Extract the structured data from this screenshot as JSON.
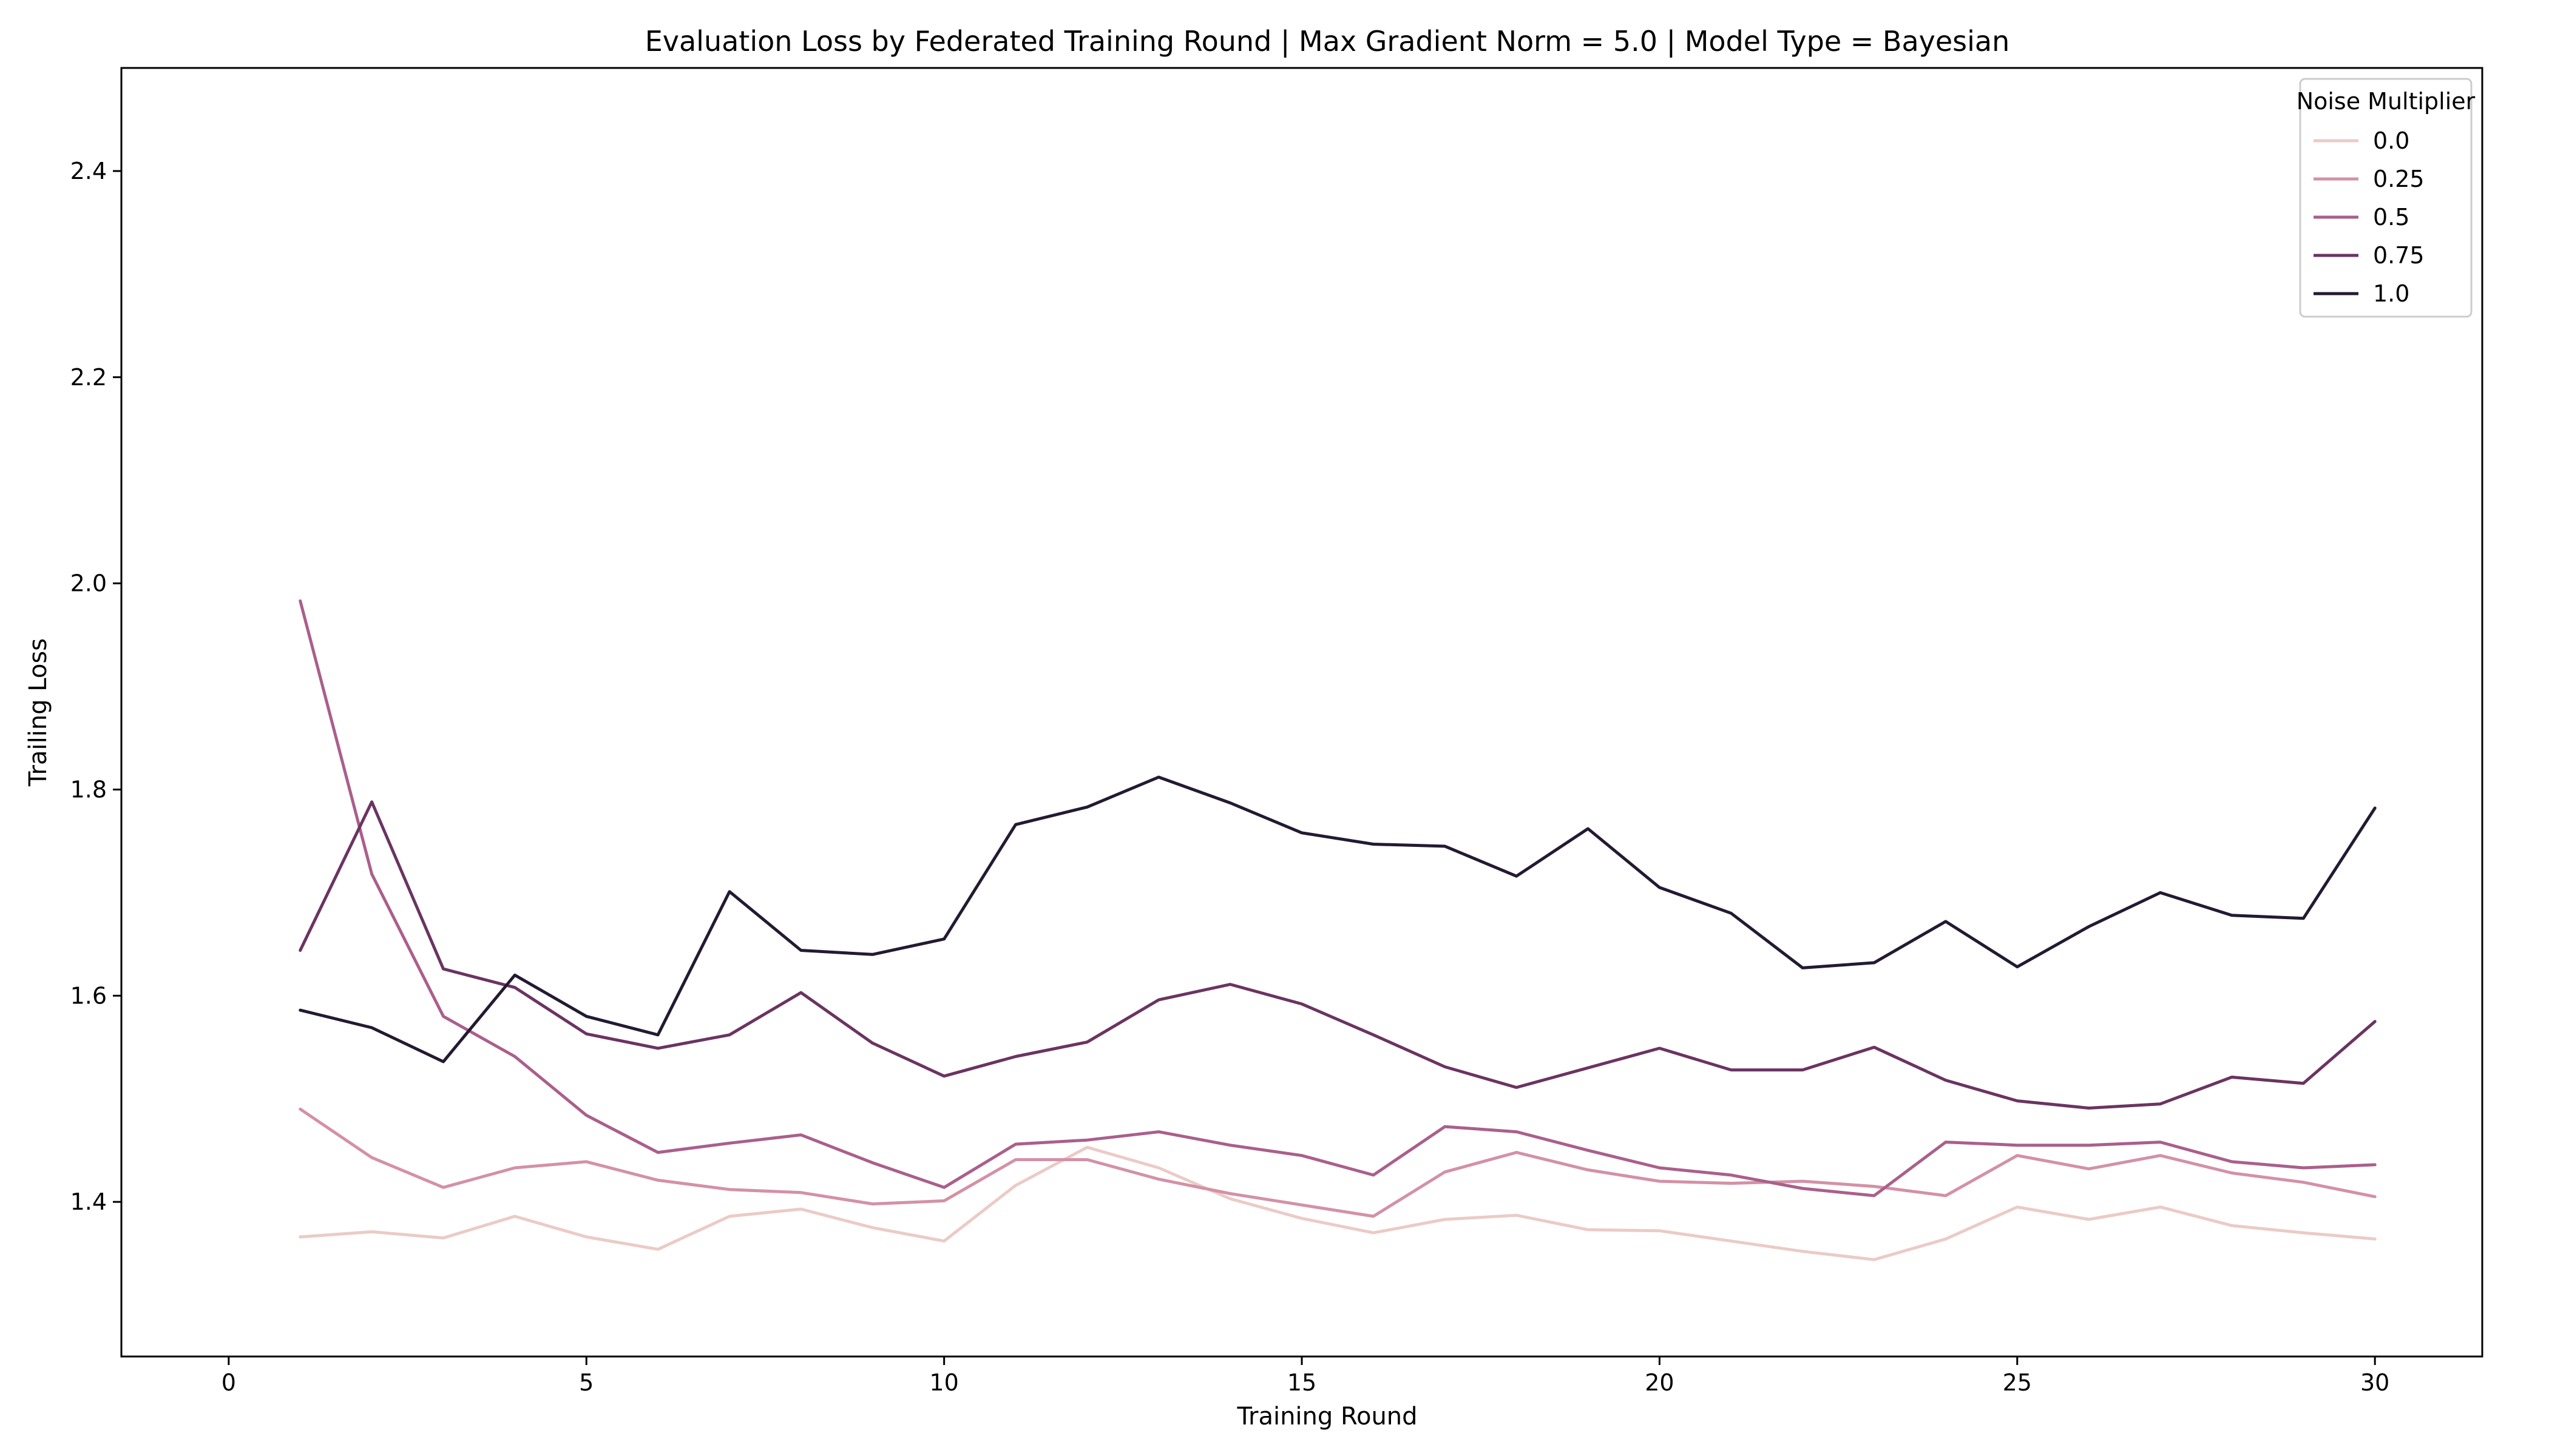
{
  "chart_data": {
    "type": "line",
    "title": "Evaluation Loss by Federated Training Round | Max Gradient Norm = 5.0 | Model Type = Bayesian",
    "xlabel": "Training Round",
    "ylabel": "Trailing Loss",
    "xlim": [
      -1.5,
      31.5
    ],
    "ylim": [
      1.25,
      2.5
    ],
    "xticks": [
      0,
      5,
      10,
      15,
      20,
      25,
      30
    ],
    "yticks": [
      1.4,
      1.6,
      1.8,
      2.0,
      2.2,
      2.4
    ],
    "grid": false,
    "legend": {
      "title": "Noise Multiplier",
      "position": "top-right"
    },
    "x": [
      1,
      2,
      3,
      4,
      5,
      6,
      7,
      8,
      9,
      10,
      11,
      12,
      13,
      14,
      15,
      16,
      17,
      18,
      19,
      20,
      21,
      22,
      23,
      24,
      25,
      26,
      27,
      28,
      29,
      30
    ],
    "series": [
      {
        "name": "0.0",
        "color": "#ebcbc7",
        "values": [
          1.366,
          1.371,
          1.365,
          1.386,
          1.366,
          1.354,
          1.386,
          1.393,
          1.375,
          1.362,
          1.416,
          1.453,
          1.433,
          1.403,
          1.384,
          1.37,
          1.383,
          1.387,
          1.373,
          1.372,
          1.362,
          1.352,
          1.344,
          1.364,
          1.395,
          1.383,
          1.395,
          1.377,
          1.37,
          1.364
        ]
      },
      {
        "name": "0.25",
        "color": "#d391a6",
        "values": [
          1.49,
          1.443,
          1.414,
          1.433,
          1.439,
          1.421,
          1.412,
          1.409,
          1.398,
          1.401,
          1.441,
          1.441,
          1.422,
          1.408,
          1.397,
          1.386,
          1.429,
          1.448,
          1.431,
          1.42,
          1.418,
          1.42,
          1.415,
          1.406,
          1.445,
          1.432,
          1.445,
          1.428,
          1.419,
          1.405
        ]
      },
      {
        "name": "0.5",
        "color": "#aa5f8c",
        "values": [
          1.983,
          1.718,
          1.58,
          1.541,
          1.484,
          1.448,
          1.457,
          1.465,
          1.438,
          1.414,
          1.456,
          1.46,
          1.468,
          1.455,
          1.445,
          1.426,
          1.473,
          1.468,
          1.45,
          1.433,
          1.426,
          1.413,
          1.406,
          1.458,
          1.455,
          1.455,
          1.458,
          1.439,
          1.433,
          1.436
        ]
      },
      {
        "name": "0.75",
        "color": "#6b3461",
        "values": [
          1.644,
          1.788,
          1.626,
          1.608,
          1.563,
          1.549,
          1.562,
          1.603,
          1.554,
          1.522,
          1.541,
          1.555,
          1.596,
          1.611,
          1.592,
          1.562,
          1.531,
          1.511,
          1.53,
          1.549,
          1.528,
          1.528,
          1.55,
          1.518,
          1.498,
          1.491,
          1.495,
          1.521,
          1.515,
          1.575
        ]
      },
      {
        "name": "1.0",
        "color": "#231a32",
        "values": [
          1.586,
          1.569,
          1.536,
          1.62,
          1.58,
          1.562,
          1.701,
          1.644,
          1.64,
          1.655,
          1.766,
          1.783,
          1.812,
          1.787,
          1.758,
          1.747,
          1.745,
          1.716,
          1.762,
          1.705,
          1.68,
          1.627,
          1.632,
          1.672,
          1.628,
          1.667,
          1.7,
          1.678,
          1.675,
          1.782
        ]
      }
    ]
  }
}
